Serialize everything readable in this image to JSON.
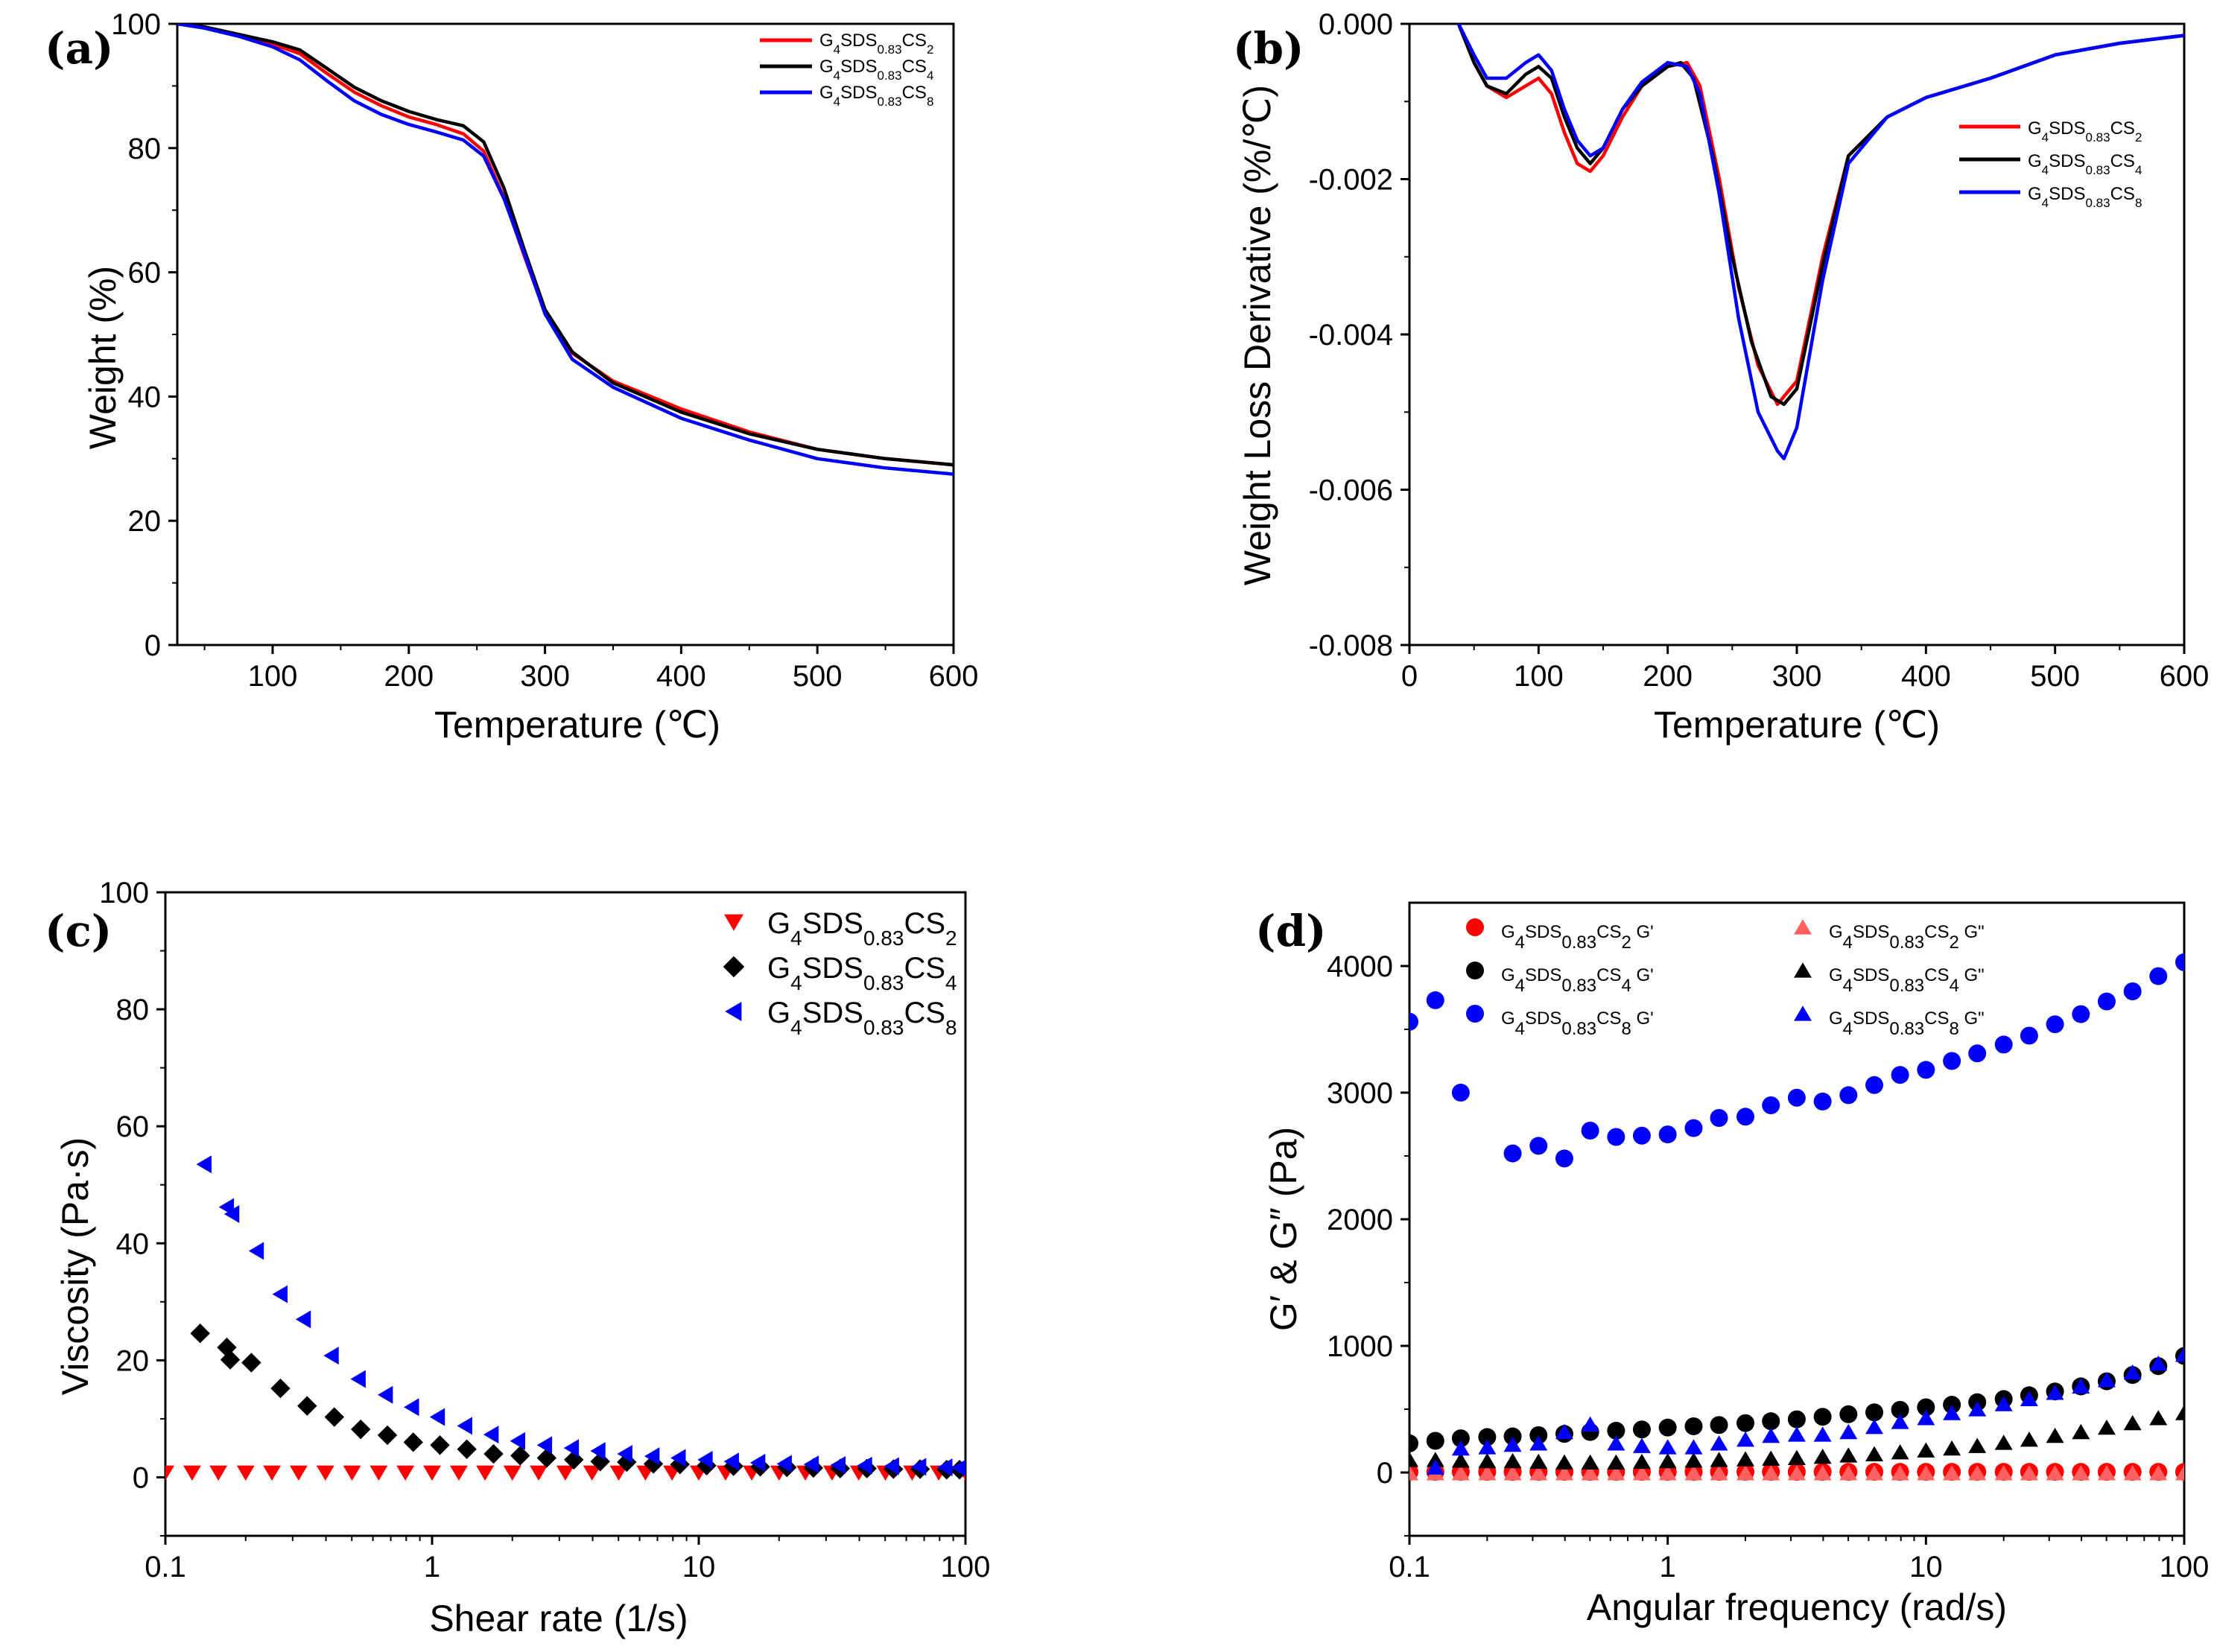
{
  "figure": {
    "panels": [
      "(a)",
      "(b)",
      "(c)",
      "(d)"
    ]
  },
  "series_colors": {
    "CS2": "#ff0000",
    "CS4": "#000000",
    "CS8": "#0000ff",
    "CS2_G2": "#ff6060"
  },
  "chart_data": [
    {
      "id": "a",
      "panel_label": "(a)",
      "type": "line",
      "title": "",
      "xlabel": "Temperature (℃)",
      "ylabel": "Weight  (%)",
      "xlim": [
        30,
        600
      ],
      "ylim": [
        0,
        100
      ],
      "xticks": [
        "100",
        "200",
        "300",
        "400",
        "500",
        "600"
      ],
      "yticks": [
        "0",
        "20",
        "40",
        "60",
        "80",
        "100"
      ],
      "legend_position": "top-right",
      "series": [
        {
          "name": "G4SDS0.83CS2",
          "label_parts": [
            "G",
            "4",
            "SDS",
            "0.83",
            "CS",
            "2"
          ],
          "color": "#ff0000",
          "x": [
            30,
            50,
            75,
            100,
            120,
            140,
            160,
            180,
            200,
            220,
            240,
            255,
            270,
            285,
            300,
            320,
            350,
            400,
            450,
            500,
            550,
            600
          ],
          "y": [
            100,
            99.5,
            98.3,
            96.7,
            95.2,
            92.0,
            89.0,
            86.8,
            85.0,
            83.8,
            82.3,
            79.5,
            72.0,
            62.5,
            53.5,
            47.0,
            42.5,
            38.0,
            34.3,
            31.5,
            30.0,
            29.0
          ]
        },
        {
          "name": "G4SDS0.83CS4",
          "label_parts": [
            "G",
            "4",
            "SDS",
            "0.83",
            "CS",
            "4"
          ],
          "color": "#000000",
          "x": [
            30,
            50,
            75,
            100,
            120,
            140,
            160,
            180,
            200,
            220,
            240,
            255,
            270,
            285,
            300,
            320,
            350,
            400,
            450,
            500,
            550,
            600
          ],
          "y": [
            100,
            99.5,
            98.3,
            97.1,
            95.8,
            92.8,
            89.8,
            87.6,
            85.9,
            84.6,
            83.6,
            81.0,
            73.5,
            63.5,
            54.0,
            47.2,
            42.2,
            37.5,
            34.0,
            31.5,
            30.0,
            29.0
          ]
        },
        {
          "name": "G4SDS0.83CS8",
          "label_parts": [
            "G",
            "4",
            "SDS",
            "0.83",
            "CS",
            "8"
          ],
          "color": "#0000ff",
          "x": [
            30,
            50,
            75,
            100,
            120,
            140,
            160,
            180,
            200,
            220,
            240,
            255,
            270,
            285,
            300,
            320,
            350,
            400,
            450,
            500,
            550,
            600
          ],
          "y": [
            100,
            99.3,
            98.0,
            96.3,
            94.2,
            90.8,
            87.6,
            85.4,
            83.8,
            82.6,
            81.3,
            78.7,
            71.8,
            62.8,
            53.3,
            46.0,
            41.5,
            36.5,
            33.0,
            30.0,
            28.5,
            27.5
          ]
        }
      ]
    },
    {
      "id": "b",
      "panel_label": "(b)",
      "type": "line",
      "title": "",
      "xlabel": "Temperature (℃)",
      "ylabel": "Weight Loss Derivative (%/℃)",
      "xlim": [
        0,
        600
      ],
      "ylim": [
        -0.008,
        0
      ],
      "xticks": [
        "0",
        "100",
        "200",
        "300",
        "400",
        "500",
        "600"
      ],
      "yticks": [
        "-0.008",
        "-0.006",
        "-0.004",
        "-0.002",
        "0.000"
      ],
      "legend_position": "right",
      "series": [
        {
          "name": "G4SDS0.83CS2",
          "label_parts": [
            "G",
            "4",
            "SDS",
            "0.83",
            "CS",
            "2"
          ],
          "color": "#ff0000",
          "x": [
            38,
            50,
            60,
            75,
            90,
            100,
            110,
            120,
            130,
            140,
            150,
            165,
            180,
            200,
            215,
            225,
            240,
            255,
            270,
            285,
            300,
            320,
            340,
            370,
            400,
            450,
            500,
            550,
            600
          ],
          "y": [
            0,
            -0.0005,
            -0.0008,
            -0.00095,
            -0.0008,
            -0.0007,
            -0.0009,
            -0.0014,
            -0.0018,
            -0.0019,
            -0.0017,
            -0.0012,
            -0.0008,
            -0.00055,
            -0.0005,
            -0.0008,
            -0.002,
            -0.0034,
            -0.0044,
            -0.0049,
            -0.0046,
            -0.003,
            -0.0017,
            -0.0012,
            -0.00095,
            -0.0007,
            -0.0004,
            -0.00025,
            -0.00015
          ]
        },
        {
          "name": "G4SDS0.83CS4",
          "label_parts": [
            "G",
            "4",
            "SDS",
            "0.83",
            "CS",
            "4"
          ],
          "color": "#000000",
          "x": [
            38,
            50,
            60,
            75,
            90,
            100,
            110,
            120,
            130,
            140,
            150,
            165,
            180,
            200,
            210,
            220,
            235,
            250,
            265,
            280,
            290,
            300,
            320,
            340,
            370,
            400,
            450,
            500,
            550,
            600
          ],
          "y": [
            0,
            -0.0005,
            -0.0008,
            -0.0009,
            -0.00065,
            -0.00055,
            -0.0007,
            -0.0012,
            -0.0016,
            -0.0018,
            -0.0016,
            -0.0011,
            -0.0008,
            -0.00055,
            -0.0005,
            -0.0007,
            -0.0017,
            -0.003,
            -0.0041,
            -0.0048,
            -0.0049,
            -0.0047,
            -0.0031,
            -0.0017,
            -0.0012,
            -0.00095,
            -0.0007,
            -0.0004,
            -0.00025,
            -0.00015
          ]
        },
        {
          "name": "G4SDS0.83CS8",
          "label_parts": [
            "G",
            "4",
            "SDS",
            "0.83",
            "CS",
            "8"
          ],
          "color": "#0000ff",
          "x": [
            38,
            50,
            60,
            75,
            90,
            100,
            110,
            120,
            130,
            140,
            150,
            165,
            180,
            200,
            215,
            225,
            240,
            255,
            270,
            285,
            290,
            300,
            320,
            340,
            370,
            400,
            450,
            500,
            550,
            600
          ],
          "y": [
            0,
            -0.0004,
            -0.0007,
            -0.0007,
            -0.0005,
            -0.0004,
            -0.0006,
            -0.0011,
            -0.0015,
            -0.0017,
            -0.0016,
            -0.0011,
            -0.00075,
            -0.0005,
            -0.00055,
            -0.0009,
            -0.0022,
            -0.0038,
            -0.005,
            -0.0055,
            -0.0056,
            -0.0052,
            -0.0033,
            -0.0018,
            -0.0012,
            -0.00095,
            -0.0007,
            -0.0004,
            -0.00025,
            -0.00015
          ]
        }
      ]
    },
    {
      "id": "c",
      "panel_label": "(c)",
      "type": "scatter",
      "title": "",
      "xlabel": "Shear rate (1/s)",
      "ylabel": "Viscosity (Pa·s)",
      "xscale": "log",
      "xlim": [
        0.1,
        100
      ],
      "ylim": [
        -10,
        100
      ],
      "xticks": [
        "0.1",
        "1",
        "10",
        "100"
      ],
      "yticks": [
        "0",
        "20",
        "40",
        "60",
        "80",
        "100"
      ],
      "legend_position": "top-right",
      "series": [
        {
          "name": "G4SDS0.83CS2",
          "label_parts": [
            "G",
            "4",
            "SDS",
            "0.83",
            "CS",
            "2"
          ],
          "color": "#ff0000",
          "marker": "triangle-down",
          "x": [
            0.1,
            0.126,
            0.158,
            0.2,
            0.251,
            0.316,
            0.398,
            0.501,
            0.631,
            0.794,
            1.0,
            1.26,
            1.58,
            2.0,
            2.51,
            3.16,
            3.98,
            5.01,
            6.31,
            7.94,
            10,
            12.6,
            15.8,
            20,
            25.1,
            31.6,
            39.8,
            50.1,
            63.1,
            79.4,
            100
          ],
          "y": [
            0.8,
            0.8,
            0.8,
            0.8,
            0.8,
            0.8,
            0.8,
            0.8,
            0.8,
            0.8,
            0.8,
            0.8,
            0.8,
            0.8,
            0.8,
            0.8,
            0.8,
            0.8,
            0.8,
            0.8,
            0.8,
            0.8,
            0.8,
            0.8,
            0.8,
            0.8,
            0.8,
            0.8,
            0.8,
            0.8,
            0.8
          ]
        },
        {
          "name": "G4SDS0.83CS4",
          "label_parts": [
            "G",
            "4",
            "SDS",
            "0.83",
            "CS",
            "4"
          ],
          "color": "#000000",
          "marker": "diamond",
          "x": [
            0.135,
            0.17,
            0.175,
            0.21,
            0.27,
            0.34,
            0.43,
            0.54,
            0.68,
            0.85,
            1.07,
            1.35,
            1.7,
            2.14,
            2.69,
            3.4,
            4.27,
            5.37,
            6.76,
            8.5,
            10.7,
            13.5,
            17,
            21.4,
            26.9,
            33.9,
            42.7,
            53.7,
            67.6,
            85,
            95
          ],
          "y": [
            24.6,
            22.2,
            20.1,
            19.6,
            15.2,
            12.2,
            10.3,
            8.2,
            7.2,
            6.0,
            5.5,
            4.8,
            4.0,
            3.7,
            3.3,
            3.0,
            2.7,
            2.6,
            2.3,
            2.2,
            2.0,
            1.9,
            1.8,
            1.7,
            1.6,
            1.5,
            1.5,
            1.4,
            1.4,
            1.3,
            1.3
          ]
        },
        {
          "name": "G4SDS0.83CS8",
          "label_parts": [
            "G",
            "4",
            "SDS",
            "0.83",
            "CS",
            "8"
          ],
          "color": "#0000ff",
          "marker": "triangle-left",
          "x": [
            0.14,
            0.17,
            0.178,
            0.22,
            0.27,
            0.33,
            0.42,
            0.53,
            0.67,
            0.84,
            1.05,
            1.33,
            1.67,
            2.1,
            2.65,
            3.34,
            4.2,
            5.3,
            6.7,
            8.4,
            10.6,
            13.3,
            16.7,
            21,
            26.5,
            33.4,
            42,
            53,
            67,
            84,
            95
          ],
          "y": [
            53.5,
            46.2,
            45.0,
            38.7,
            31.3,
            27.0,
            20.8,
            16.8,
            14.1,
            12.0,
            10.3,
            8.8,
            7.3,
            6.2,
            5.5,
            5.0,
            4.5,
            4.0,
            3.6,
            3.3,
            3.0,
            2.7,
            2.5,
            2.3,
            2.2,
            2.1,
            2.0,
            1.9,
            1.8,
            1.7,
            1.6
          ]
        }
      ]
    },
    {
      "id": "d",
      "panel_label": "(d)",
      "type": "scatter",
      "title": "",
      "xlabel": "Angular frequency (rad/s)",
      "ylabel": "G′ & G″ (Pa)",
      "xscale": "log",
      "xlim": [
        0.1,
        100
      ],
      "ylim": [
        -500,
        4500
      ],
      "xticks": [
        "0.1",
        "1",
        "10",
        "100"
      ],
      "yticks": [
        "0",
        "1000",
        "2000",
        "3000",
        "4000"
      ],
      "legend_position": "top",
      "x": [
        0.1,
        0.126,
        0.158,
        0.2,
        0.251,
        0.316,
        0.398,
        0.501,
        0.631,
        0.794,
        1.0,
        1.26,
        1.58,
        2.0,
        2.51,
        3.16,
        3.98,
        5.01,
        6.31,
        7.94,
        10,
        12.6,
        15.8,
        20,
        25.1,
        31.6,
        39.8,
        50.1,
        63.1,
        79.4,
        100
      ],
      "series": [
        {
          "name": "G4SDS0.83CS2 G'",
          "label_parts": [
            "G",
            "4",
            "SDS",
            "0.83",
            "CS",
            "2",
            "  G'"
          ],
          "color": "#ff0000",
          "marker": "circle",
          "y": [
            5,
            5,
            5,
            5,
            5,
            5,
            5,
            5,
            5,
            5,
            5,
            5,
            5,
            5,
            5,
            5,
            5,
            5,
            5,
            5,
            5,
            5,
            5,
            5,
            5,
            5,
            5,
            5,
            5,
            5,
            5
          ]
        },
        {
          "name": "G4SDS0.83CS2 G\"",
          "label_parts": [
            "G",
            "4",
            "SDS",
            "0.83",
            "CS",
            "2",
            "  G\""
          ],
          "color": "#ff6060",
          "marker": "triangle-up",
          "y": [
            -5,
            -5,
            -5,
            -5,
            -5,
            -5,
            -5,
            -5,
            -5,
            -5,
            -5,
            -5,
            -5,
            -5,
            -5,
            -5,
            -5,
            -5,
            -5,
            -5,
            -5,
            -5,
            -5,
            -5,
            -5,
            -5,
            -5,
            -5,
            -5,
            -5,
            -5
          ]
        },
        {
          "name": "G4SDS0.83CS4 G'",
          "label_parts": [
            "G",
            "4",
            "SDS",
            "0.83",
            "CS",
            "4",
            "  G'"
          ],
          "color": "#000000",
          "marker": "circle",
          "y": [
            230,
            250,
            270,
            280,
            285,
            295,
            305,
            320,
            330,
            340,
            355,
            365,
            375,
            390,
            405,
            420,
            440,
            460,
            475,
            495,
            515,
            535,
            555,
            580,
            610,
            640,
            680,
            720,
            770,
            840,
            920
          ]
        },
        {
          "name": "G4SDS0.83CS4 G\"",
          "label_parts": [
            "G",
            "4",
            "SDS",
            "0.83",
            "CS",
            "4",
            "  G\""
          ],
          "color": "#000000",
          "marker": "triangle-up",
          "y": [
            100,
            100,
            95,
            90,
            90,
            85,
            80,
            80,
            80,
            85,
            90,
            95,
            100,
            105,
            110,
            115,
            125,
            135,
            145,
            160,
            175,
            190,
            210,
            235,
            260,
            290,
            320,
            355,
            390,
            430,
            470
          ]
        },
        {
          "name": "G4SDS0.83CS8 G'",
          "label_parts": [
            "G",
            "4",
            "SDS",
            "0.83",
            "CS",
            "8",
            "  G'"
          ],
          "color": "#0000ff",
          "marker": "circle",
          "y": [
            3560,
            3730,
            3000,
            null,
            2520,
            2580,
            2480,
            2700,
            2650,
            2660,
            2670,
            2720,
            2800,
            2810,
            2900,
            2960,
            2930,
            2980,
            3060,
            3140,
            3180,
            3250,
            3310,
            3380,
            3450,
            3540,
            3620,
            3720,
            3800,
            3920,
            4030
          ]
        },
        {
          "name": "G4SDS0.83CS8 G\"",
          "label_parts": [
            "G",
            "4",
            "SDS",
            "0.83",
            "CS",
            "8",
            "  G\""
          ],
          "color": "#0000ff",
          "marker": "triangle-up",
          "y": [
            null,
            40,
            190,
            200,
            220,
            230,
            320,
            380,
            230,
            210,
            200,
            200,
            230,
            260,
            290,
            300,
            300,
            320,
            360,
            400,
            430,
            470,
            500,
            540,
            580,
            630,
            680,
            730,
            790,
            860,
            930
          ]
        }
      ]
    }
  ]
}
